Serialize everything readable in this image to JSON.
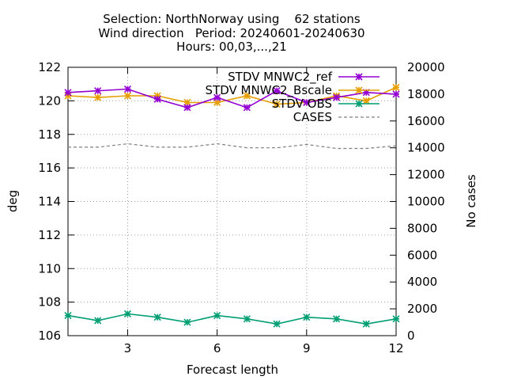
{
  "chart_data": {
    "type": "line",
    "title_lines": [
      "Selection: NorthNorway using    62 stations",
      "Wind direction   Period: 20240601-20240630",
      "Hours: 00,03,...,21"
    ],
    "xlabel": "Forecast length",
    "ylabel": "deg",
    "y2label": "No cases",
    "xlim": [
      1,
      12
    ],
    "ylim": [
      106,
      122
    ],
    "y2lim": [
      0,
      20000
    ],
    "xticks": [
      "3",
      "6",
      "9",
      "12"
    ],
    "yticks": [
      "106",
      "108",
      "110",
      "112",
      "114",
      "116",
      "118",
      "120",
      "122"
    ],
    "y2ticks": [
      "0",
      "2000",
      "4000",
      "6000",
      "8000",
      "10000",
      "12000",
      "14000",
      "16000",
      "18000",
      "20000"
    ],
    "grid": true,
    "legend_position": "top-right",
    "x": [
      1,
      2,
      3,
      4,
      5,
      6,
      7,
      8,
      9,
      10,
      11,
      12
    ],
    "series": [
      {
        "name": "STDV MNWC2_ref",
        "axis": "y",
        "color": "#9400d3",
        "marker": "star",
        "values": [
          120.5,
          120.6,
          120.7,
          120.1,
          119.6,
          120.2,
          119.6,
          120.6,
          119.9,
          120.2,
          120.5,
          120.4
        ]
      },
      {
        "name": "STDV MNWC2_Bscale",
        "axis": "y",
        "color": "#e69f00",
        "marker": "star",
        "values": [
          120.3,
          120.2,
          120.3,
          120.3,
          119.9,
          119.9,
          120.3,
          119.8,
          119.9,
          120.3,
          120.0,
          120.8
        ]
      },
      {
        "name": "STDV OBS",
        "axis": "y",
        "color": "#009e73",
        "marker": "star",
        "values": [
          107.2,
          106.9,
          107.3,
          107.1,
          106.8,
          107.2,
          107.0,
          106.7,
          107.1,
          107.0,
          106.7,
          107.0
        ]
      },
      {
        "name": "CASES",
        "axis": "y2",
        "color": "#808080",
        "marker": "none",
        "dashed": true,
        "values": [
          14050,
          14050,
          14300,
          14050,
          14050,
          14300,
          14000,
          14000,
          14250,
          13950,
          13950,
          14150
        ]
      }
    ]
  }
}
